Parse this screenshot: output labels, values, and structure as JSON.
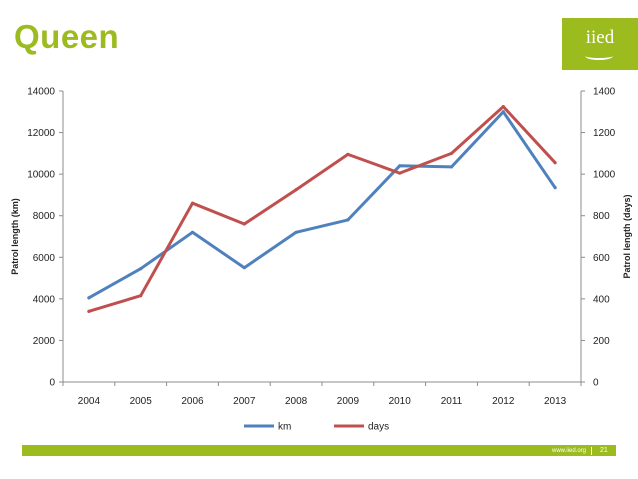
{
  "slide": {
    "title": "Queen",
    "logo_text": "iied",
    "footer_url": "www.iied.org",
    "page_number": "21",
    "brand_color": "#9bbb1f"
  },
  "chart_data": {
    "type": "line",
    "categories": [
      "2004",
      "2005",
      "2006",
      "2007",
      "2008",
      "2009",
      "2010",
      "2011",
      "2012",
      "2013"
    ],
    "series": [
      {
        "name": "km",
        "axis": "left",
        "color": "#4f81bd",
        "values": [
          4050,
          5450,
          7200,
          5500,
          7200,
          7800,
          10400,
          10350,
          13000,
          9350
        ]
      },
      {
        "name": "days",
        "axis": "right",
        "color": "#c0504d",
        "values": [
          340,
          415,
          860,
          760,
          925,
          1095,
          1005,
          1100,
          1325,
          1055
        ]
      }
    ],
    "ylabel_left": "Patrol length (km)",
    "ylabel_right": "Patrol length (days)",
    "ylim_left": [
      0,
      14000
    ],
    "ylim_right": [
      0,
      1400
    ],
    "yticks_left": [
      "0",
      "2000",
      "4000",
      "6000",
      "8000",
      "10000",
      "12000",
      "14000"
    ],
    "yticks_right": [
      "0",
      "200",
      "400",
      "600",
      "800",
      "1000",
      "1200",
      "1400"
    ],
    "grid": false,
    "legend_position": "bottom"
  }
}
